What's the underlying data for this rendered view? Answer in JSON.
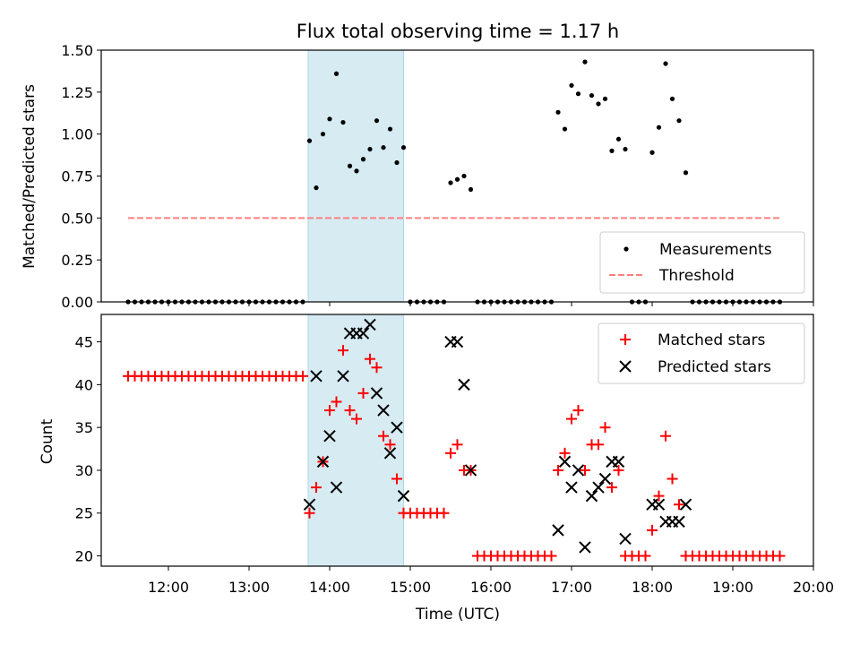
{
  "title": "Flux total observing time = 1.17 h",
  "xlabel": "Time (UTC)",
  "colors": {
    "measurement": "#000000",
    "threshold": "#ff8080",
    "matched": "#ff0000",
    "predicted": "#000000",
    "span": "#add8e6"
  },
  "chart_data": [
    {
      "type": "scatter",
      "ylabel": "Matched/Predicted stars",
      "xlim": [
        "11:10",
        "20:00"
      ],
      "ylim": [
        0,
        1.5
      ],
      "yticks": [
        "0.00",
        "0.25",
        "0.50",
        "0.75",
        "1.00",
        "1.25",
        "1.50"
      ],
      "xticks": [
        "12:00",
        "13:00",
        "14:00",
        "15:00",
        "16:00",
        "17:00",
        "18:00",
        "19:00",
        "20:00"
      ],
      "show_xtick_labels": false,
      "legend": {
        "position": "lower right",
        "entries": [
          "Measurements",
          "Threshold"
        ]
      },
      "highlight_span": [
        "13:44",
        "14:55"
      ],
      "threshold": {
        "y": 0.5,
        "x": [
          "11:30",
          "19:36"
        ]
      },
      "series": [
        {
          "name": "Measurements",
          "marker": "dot",
          "points": [
            [
              "11:30",
              0
            ],
            [
              "11:35",
              0
            ],
            [
              "11:40",
              0
            ],
            [
              "11:45",
              0
            ],
            [
              "11:50",
              0
            ],
            [
              "11:55",
              0
            ],
            [
              "12:00",
              0
            ],
            [
              "12:05",
              0
            ],
            [
              "12:10",
              0
            ],
            [
              "12:15",
              0
            ],
            [
              "12:20",
              0
            ],
            [
              "12:25",
              0
            ],
            [
              "12:30",
              0
            ],
            [
              "12:35",
              0
            ],
            [
              "12:40",
              0
            ],
            [
              "12:45",
              0
            ],
            [
              "12:50",
              0
            ],
            [
              "12:55",
              0
            ],
            [
              "13:00",
              0
            ],
            [
              "13:05",
              0
            ],
            [
              "13:10",
              0
            ],
            [
              "13:15",
              0
            ],
            [
              "13:20",
              0
            ],
            [
              "13:25",
              0
            ],
            [
              "13:30",
              0
            ],
            [
              "13:35",
              0
            ],
            [
              "13:40",
              0
            ],
            [
              "13:45",
              0.96
            ],
            [
              "13:50",
              0.68
            ],
            [
              "13:55",
              1.0
            ],
            [
              "14:00",
              1.09
            ],
            [
              "14:05",
              1.36
            ],
            [
              "14:10",
              1.07
            ],
            [
              "14:15",
              0.81
            ],
            [
              "14:20",
              0.78
            ],
            [
              "14:25",
              0.85
            ],
            [
              "14:30",
              0.91
            ],
            [
              "14:35",
              1.08
            ],
            [
              "14:40",
              0.92
            ],
            [
              "14:45",
              1.03
            ],
            [
              "14:50",
              0.83
            ],
            [
              "14:55",
              0.92
            ],
            [
              "15:00",
              0
            ],
            [
              "15:05",
              0
            ],
            [
              "15:10",
              0
            ],
            [
              "15:15",
              0
            ],
            [
              "15:20",
              0
            ],
            [
              "15:25",
              0
            ],
            [
              "15:30",
              0.71
            ],
            [
              "15:35",
              0.73
            ],
            [
              "15:40",
              0.75
            ],
            [
              "15:45",
              0.67
            ],
            [
              "15:50",
              0
            ],
            [
              "15:55",
              0
            ],
            [
              "16:00",
              0
            ],
            [
              "16:05",
              0
            ],
            [
              "16:10",
              0
            ],
            [
              "16:15",
              0
            ],
            [
              "16:20",
              0
            ],
            [
              "16:25",
              0
            ],
            [
              "16:30",
              0
            ],
            [
              "16:35",
              0
            ],
            [
              "16:40",
              0
            ],
            [
              "16:45",
              0
            ],
            [
              "16:50",
              1.13
            ],
            [
              "16:55",
              1.03
            ],
            [
              "17:00",
              1.29
            ],
            [
              "17:05",
              1.24
            ],
            [
              "17:10",
              1.43
            ],
            [
              "17:15",
              1.23
            ],
            [
              "17:20",
              1.18
            ],
            [
              "17:25",
              1.21
            ],
            [
              "17:30",
              0.9
            ],
            [
              "17:35",
              0.97
            ],
            [
              "17:40",
              0.91
            ],
            [
              "17:45",
              0
            ],
            [
              "17:50",
              0
            ],
            [
              "17:55",
              0
            ],
            [
              "18:00",
              0.89
            ],
            [
              "18:05",
              1.04
            ],
            [
              "18:10",
              1.42
            ],
            [
              "18:15",
              1.21
            ],
            [
              "18:20",
              1.08
            ],
            [
              "18:25",
              0.77
            ],
            [
              "18:30",
              0
            ],
            [
              "18:35",
              0
            ],
            [
              "18:40",
              0
            ],
            [
              "18:45",
              0
            ],
            [
              "18:50",
              0
            ],
            [
              "18:55",
              0
            ],
            [
              "19:00",
              0
            ],
            [
              "19:05",
              0
            ],
            [
              "19:10",
              0
            ],
            [
              "19:15",
              0
            ],
            [
              "19:20",
              0
            ],
            [
              "19:25",
              0
            ],
            [
              "19:30",
              0
            ],
            [
              "19:35",
              0
            ]
          ]
        }
      ]
    },
    {
      "type": "scatter",
      "ylabel": "Count",
      "xlim": [
        "11:10",
        "20:00"
      ],
      "ylim": [
        18.8,
        48.2
      ],
      "yticks": [
        "20",
        "25",
        "30",
        "35",
        "40",
        "45"
      ],
      "xticks": [
        "12:00",
        "13:00",
        "14:00",
        "15:00",
        "16:00",
        "17:00",
        "18:00",
        "19:00",
        "20:00"
      ],
      "show_xtick_labels": true,
      "legend": {
        "position": "upper right",
        "entries": [
          "Matched stars",
          "Predicted stars"
        ]
      },
      "highlight_span": [
        "13:44",
        "14:55"
      ],
      "series": [
        {
          "name": "Matched stars",
          "marker": "plus",
          "points": [
            [
              "11:30",
              41
            ],
            [
              "11:35",
              41
            ],
            [
              "11:40",
              41
            ],
            [
              "11:45",
              41
            ],
            [
              "11:50",
              41
            ],
            [
              "11:55",
              41
            ],
            [
              "12:00",
              41
            ],
            [
              "12:05",
              41
            ],
            [
              "12:10",
              41
            ],
            [
              "12:15",
              41
            ],
            [
              "12:20",
              41
            ],
            [
              "12:25",
              41
            ],
            [
              "12:30",
              41
            ],
            [
              "12:35",
              41
            ],
            [
              "12:40",
              41
            ],
            [
              "12:45",
              41
            ],
            [
              "12:50",
              41
            ],
            [
              "12:55",
              41
            ],
            [
              "13:00",
              41
            ],
            [
              "13:05",
              41
            ],
            [
              "13:10",
              41
            ],
            [
              "13:15",
              41
            ],
            [
              "13:20",
              41
            ],
            [
              "13:25",
              41
            ],
            [
              "13:30",
              41
            ],
            [
              "13:35",
              41
            ],
            [
              "13:40",
              41
            ],
            [
              "13:45",
              25
            ],
            [
              "13:50",
              28
            ],
            [
              "13:55",
              31
            ],
            [
              "14:00",
              37
            ],
            [
              "14:05",
              38
            ],
            [
              "14:10",
              44
            ],
            [
              "14:15",
              37
            ],
            [
              "14:20",
              36
            ],
            [
              "14:25",
              39
            ],
            [
              "14:30",
              43
            ],
            [
              "14:35",
              42
            ],
            [
              "14:40",
              34
            ],
            [
              "14:45",
              33
            ],
            [
              "14:50",
              29
            ],
            [
              "14:55",
              25
            ],
            [
              "15:00",
              25
            ],
            [
              "15:05",
              25
            ],
            [
              "15:10",
              25
            ],
            [
              "15:15",
              25
            ],
            [
              "15:20",
              25
            ],
            [
              "15:25",
              25
            ],
            [
              "15:30",
              32
            ],
            [
              "15:35",
              33
            ],
            [
              "15:40",
              30
            ],
            [
              "15:45",
              30
            ],
            [
              "15:50",
              20
            ],
            [
              "15:55",
              20
            ],
            [
              "16:00",
              20
            ],
            [
              "16:05",
              20
            ],
            [
              "16:10",
              20
            ],
            [
              "16:15",
              20
            ],
            [
              "16:20",
              20
            ],
            [
              "16:25",
              20
            ],
            [
              "16:30",
              20
            ],
            [
              "16:35",
              20
            ],
            [
              "16:40",
              20
            ],
            [
              "16:45",
              20
            ],
            [
              "16:50",
              30
            ],
            [
              "16:55",
              32
            ],
            [
              "17:00",
              36
            ],
            [
              "17:05",
              37
            ],
            [
              "17:10",
              30
            ],
            [
              "17:15",
              33
            ],
            [
              "17:20",
              33
            ],
            [
              "17:25",
              35
            ],
            [
              "17:30",
              28
            ],
            [
              "17:35",
              30
            ],
            [
              "17:40",
              20
            ],
            [
              "17:45",
              20
            ],
            [
              "17:50",
              20
            ],
            [
              "17:55",
              20
            ],
            [
              "18:00",
              23
            ],
            [
              "18:05",
              27
            ],
            [
              "18:10",
              34
            ],
            [
              "18:15",
              29
            ],
            [
              "18:20",
              26
            ],
            [
              "18:25",
              20
            ],
            [
              "18:30",
              20
            ],
            [
              "18:35",
              20
            ],
            [
              "18:40",
              20
            ],
            [
              "18:45",
              20
            ],
            [
              "18:50",
              20
            ],
            [
              "18:55",
              20
            ],
            [
              "19:00",
              20
            ],
            [
              "19:05",
              20
            ],
            [
              "19:10",
              20
            ],
            [
              "19:15",
              20
            ],
            [
              "19:20",
              20
            ],
            [
              "19:25",
              20
            ],
            [
              "19:30",
              20
            ],
            [
              "19:35",
              20
            ]
          ]
        },
        {
          "name": "Predicted stars",
          "marker": "x",
          "points": [
            [
              "13:45",
              26
            ],
            [
              "13:50",
              41
            ],
            [
              "13:55",
              31
            ],
            [
              "14:00",
              34
            ],
            [
              "14:05",
              28
            ],
            [
              "14:10",
              41
            ],
            [
              "14:15",
              46
            ],
            [
              "14:20",
              46
            ],
            [
              "14:25",
              46
            ],
            [
              "14:30",
              47
            ],
            [
              "14:35",
              39
            ],
            [
              "14:40",
              37
            ],
            [
              "14:45",
              32
            ],
            [
              "14:50",
              35
            ],
            [
              "14:55",
              27
            ],
            [
              "15:30",
              45
            ],
            [
              "15:35",
              45
            ],
            [
              "15:40",
              40
            ],
            [
              "15:45",
              30
            ],
            [
              "16:50",
              23
            ],
            [
              "16:55",
              31
            ],
            [
              "17:00",
              28
            ],
            [
              "17:05",
              30
            ],
            [
              "17:10",
              21
            ],
            [
              "17:15",
              27
            ],
            [
              "17:20",
              28
            ],
            [
              "17:25",
              29
            ],
            [
              "17:30",
              31
            ],
            [
              "17:35",
              31
            ],
            [
              "17:40",
              22
            ],
            [
              "18:00",
              26
            ],
            [
              "18:05",
              26
            ],
            [
              "18:10",
              24
            ],
            [
              "18:15",
              24
            ],
            [
              "18:20",
              24
            ],
            [
              "18:25",
              26
            ]
          ]
        }
      ]
    }
  ]
}
